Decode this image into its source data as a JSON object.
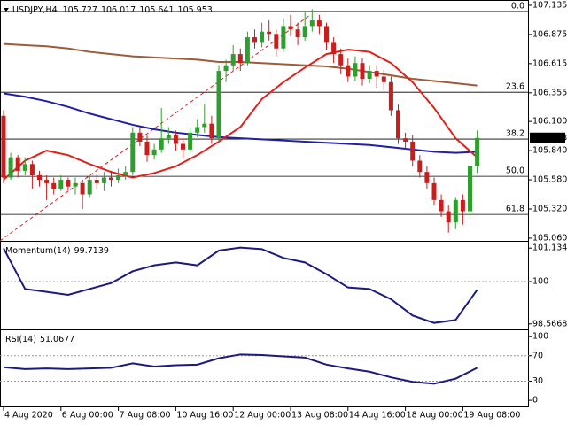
{
  "chart_data": [
    {
      "type": "candlestick",
      "title": "USDJPY,H4",
      "ohlc_header": [
        105.727,
        106.017,
        105.641,
        105.953
      ],
      "bull_color": "#2f9e2f",
      "bear_color": "#c81e1e",
      "last_price": 105.953,
      "ylim": [
        105.036,
        107.182
      ],
      "yticks": [
        107.135,
        106.875,
        106.615,
        106.355,
        {
          "value": 106.1,
          "label": "106.100"
        },
        {
          "value": 105.84,
          "label": "105.840"
        },
        {
          "value": 105.58,
          "label": "105.580"
        },
        {
          "value": 105.32,
          "label": "105.320"
        },
        {
          "value": 105.06,
          "label": "105.060"
        }
      ],
      "fib_levels": [
        {
          "value": 107.08,
          "label": "0.0"
        },
        {
          "value": 106.36,
          "label": "23.6"
        },
        {
          "value": 105.943,
          "label": "38.2"
        },
        {
          "value": 105.611,
          "label": "50.0"
        },
        {
          "value": 105.272,
          "label": "61.8"
        }
      ],
      "candles": [
        [
          106.15,
          106.2,
          105.55,
          105.6
        ],
        [
          105.6,
          105.82,
          105.58,
          105.78
        ],
        [
          105.78,
          105.8,
          105.6,
          105.66
        ],
        [
          105.66,
          105.78,
          105.62,
          105.72
        ],
        [
          105.72,
          105.75,
          105.5,
          105.62
        ],
        [
          105.62,
          105.66,
          105.52,
          105.58
        ],
        [
          105.58,
          105.62,
          105.4,
          105.55
        ],
        [
          105.55,
          105.6,
          105.45,
          105.5
        ],
        [
          105.5,
          105.62,
          105.48,
          105.58
        ],
        [
          105.58,
          105.6,
          105.48,
          105.52
        ],
        [
          105.52,
          105.6,
          105.45,
          105.55
        ],
        [
          105.55,
          105.58,
          105.32,
          105.45
        ],
        [
          105.45,
          105.62,
          105.42,
          105.58
        ],
        [
          105.58,
          105.64,
          105.5,
          105.55
        ],
        [
          105.55,
          105.65,
          105.48,
          105.6
        ],
        [
          105.6,
          105.66,
          105.52,
          105.58
        ],
        [
          105.58,
          105.68,
          105.55,
          105.62
        ],
        [
          105.62,
          105.7,
          105.58,
          105.65
        ],
        [
          105.65,
          106.05,
          105.62,
          106.0
        ],
        [
          106.0,
          106.05,
          105.88,
          105.92
        ],
        [
          105.92,
          105.98,
          105.74,
          105.8
        ],
        [
          105.8,
          105.9,
          105.76,
          105.85
        ],
        [
          105.85,
          106.22,
          105.82,
          105.95
        ],
        [
          105.95,
          106.05,
          105.9,
          105.98
        ],
        [
          105.98,
          106.02,
          105.84,
          105.9
        ],
        [
          105.9,
          105.96,
          105.78,
          105.85
        ],
        [
          105.85,
          106.05,
          105.82,
          106.0
        ],
        [
          106.0,
          106.12,
          105.96,
          106.05
        ],
        [
          106.05,
          106.25,
          106.0,
          106.08
        ],
        [
          106.08,
          106.15,
          105.9,
          105.95
        ],
        [
          105.95,
          106.6,
          105.92,
          106.55
        ],
        [
          106.55,
          106.65,
          106.45,
          106.6
        ],
        [
          106.6,
          106.78,
          106.55,
          106.7
        ],
        [
          106.7,
          106.75,
          106.55,
          106.62
        ],
        [
          106.62,
          106.9,
          106.6,
          106.85
        ],
        [
          106.85,
          106.92,
          106.75,
          106.8
        ],
        [
          106.8,
          106.98,
          106.76,
          106.9
        ],
        [
          106.9,
          107.0,
          106.82,
          106.88
        ],
        [
          106.88,
          106.92,
          106.68,
          106.75
        ],
        [
          106.75,
          107.02,
          106.72,
          106.95
        ],
        [
          106.95,
          107.05,
          106.86,
          106.92
        ],
        [
          106.92,
          106.98,
          106.78,
          106.85
        ],
        [
          106.85,
          107.08,
          106.82,
          106.95
        ],
        [
          106.95,
          107.1,
          106.9,
          107.0
        ],
        [
          107.0,
          107.05,
          106.88,
          106.95
        ],
        [
          106.95,
          106.98,
          106.74,
          106.8
        ],
        [
          106.8,
          106.85,
          106.62,
          106.7
        ],
        [
          106.7,
          106.75,
          106.52,
          106.6
        ],
        [
          106.6,
          106.66,
          106.45,
          106.5
        ],
        [
          106.5,
          106.68,
          106.46,
          106.62
        ],
        [
          106.62,
          106.66,
          106.42,
          106.48
        ],
        [
          106.48,
          106.6,
          106.44,
          106.55
        ],
        [
          106.55,
          106.6,
          106.4,
          106.5
        ],
        [
          106.5,
          106.56,
          106.38,
          106.45
        ],
        [
          106.45,
          106.5,
          106.15,
          106.2
        ],
        [
          106.2,
          106.25,
          105.9,
          105.95
        ],
        [
          105.95,
          106.0,
          105.85,
          105.92
        ],
        [
          105.92,
          105.98,
          105.7,
          105.75
        ],
        [
          105.75,
          105.8,
          105.6,
          105.65
        ],
        [
          105.65,
          105.7,
          105.5,
          105.55
        ],
        [
          105.55,
          105.6,
          105.35,
          105.4
        ],
        [
          105.4,
          105.45,
          105.25,
          105.3
        ],
        [
          105.3,
          105.35,
          105.11,
          105.2
        ],
        [
          105.2,
          105.42,
          105.14,
          105.4
        ],
        [
          105.4,
          105.45,
          105.18,
          105.3
        ],
        [
          105.3,
          105.72,
          105.26,
          105.7
        ],
        [
          105.7,
          106.02,
          105.64,
          105.953
        ]
      ],
      "lines": [
        {
          "color": "#9c5b3a",
          "x": [
            0,
            3,
            6,
            9,
            12,
            15,
            18,
            21,
            24,
            27,
            30,
            33,
            36,
            39,
            42,
            45,
            48,
            51,
            54,
            57,
            60,
            63,
            66
          ],
          "values": [
            106.79,
            106.78,
            106.77,
            106.75,
            106.72,
            106.7,
            106.68,
            106.67,
            106.66,
            106.65,
            106.63,
            106.63,
            106.62,
            106.61,
            106.6,
            106.59,
            106.57,
            106.54,
            106.51,
            106.48,
            106.46,
            106.44,
            106.42
          ]
        },
        {
          "color": "#1f1fa8",
          "x": [
            0,
            3,
            6,
            9,
            12,
            15,
            18,
            21,
            24,
            27,
            30,
            33,
            36,
            39,
            42,
            45,
            48,
            51,
            54,
            57,
            60,
            63,
            66
          ],
          "values": [
            106.35,
            106.32,
            106.28,
            106.23,
            106.17,
            106.12,
            106.07,
            106.03,
            106.0,
            105.98,
            105.96,
            105.95,
            105.94,
            105.93,
            105.92,
            105.91,
            105.9,
            105.89,
            105.87,
            105.85,
            105.83,
            105.82,
            105.83
          ]
        },
        {
          "color": "#e0201b",
          "x": [
            0,
            3,
            6,
            9,
            12,
            15,
            18,
            21,
            24,
            27,
            30,
            33,
            36,
            39,
            42,
            45,
            48,
            51,
            54,
            57,
            60,
            63,
            66
          ],
          "values": [
            105.58,
            105.75,
            105.84,
            105.8,
            105.72,
            105.65,
            105.6,
            105.64,
            105.7,
            105.8,
            105.92,
            106.05,
            106.3,
            106.45,
            106.58,
            106.7,
            106.74,
            106.72,
            106.62,
            106.45,
            106.22,
            105.95,
            105.78
          ]
        }
      ]
    },
    {
      "type": "line",
      "title": "Momentum(14)",
      "last": 99.7139,
      "color": "#1a1a80",
      "ylim": [
        98.38,
        101.35
      ],
      "yticks": [
        101.134,
        100,
        98.5668
      ],
      "levels": [
        100
      ],
      "x": [
        0,
        3,
        6,
        9,
        12,
        15,
        18,
        21,
        24,
        27,
        30,
        33,
        36,
        39,
        42,
        45,
        48,
        51,
        54,
        57,
        60,
        63,
        66
      ],
      "values": [
        101.13,
        99.75,
        99.65,
        99.55,
        99.75,
        99.95,
        100.35,
        100.55,
        100.65,
        100.55,
        101.05,
        101.15,
        101.1,
        100.8,
        100.65,
        100.25,
        99.8,
        99.75,
        99.4,
        98.85,
        98.6,
        98.7,
        99.72
      ]
    },
    {
      "type": "line",
      "title": "RSI(14)",
      "last": 51.0677,
      "color": "#1a1a80",
      "ylim": [
        -11,
        110
      ],
      "yticks": [
        100,
        70,
        30,
        0
      ],
      "levels": [
        70,
        30
      ],
      "x": [
        0,
        3,
        6,
        9,
        12,
        15,
        18,
        21,
        24,
        27,
        30,
        33,
        36,
        39,
        42,
        45,
        48,
        51,
        54,
        57,
        60,
        63,
        66
      ],
      "values": [
        52,
        49,
        50,
        49,
        50,
        51,
        58,
        53,
        55,
        56,
        66,
        72,
        71,
        69,
        67,
        56,
        50,
        45,
        36,
        29,
        26,
        34,
        51.07
      ],
      "xticks": [
        {
          "value": 0,
          "label": "4 Aug 2020"
        },
        {
          "value": 8,
          "label": "6 Aug 00:00"
        },
        {
          "value": 16,
          "label": "7 Aug 08:00"
        },
        {
          "value": 24,
          "label": "10 Aug 16:00"
        },
        {
          "value": 32,
          "label": "12 Aug 00:00"
        },
        {
          "value": 40,
          "label": "13 Aug 08:00"
        },
        {
          "value": 48,
          "label": "14 Aug 16:00"
        },
        {
          "value": 56,
          "label": "18 Aug 00:00"
        },
        {
          "value": 64,
          "label": "19 Aug 08:00"
        }
      ]
    }
  ]
}
